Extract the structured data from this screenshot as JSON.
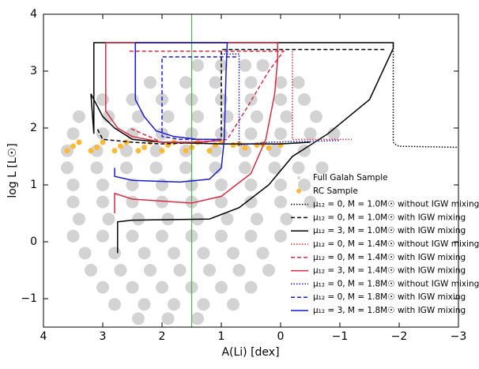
{
  "chart_data": {
    "type": "line",
    "xlabel": "A(Li) [dex]",
    "ylabel": "log L [L☉]",
    "xlim": [
      4,
      -3
    ],
    "ylim": [
      -1.5,
      4
    ],
    "xticks": [
      4,
      3,
      2,
      1,
      0,
      {
        "value": -1,
        "label": "−1"
      },
      {
        "value": -2,
        "label": "−2"
      },
      {
        "value": -3,
        "label": "−3"
      }
    ],
    "yticks": [
      {
        "value": -1,
        "label": "−1"
      },
      0,
      1,
      2,
      3,
      4
    ],
    "vline": {
      "x": 1.5,
      "color": "#4caf50"
    },
    "scatter": [
      {
        "name": "Full Galah Sample",
        "color": "#d3d3d3",
        "x": [
          1.4,
          1.0,
          0.6,
          0.3,
          2.2,
          1.6,
          1.1,
          0.5,
          0.0,
          -0.3,
          3.0,
          2.5,
          2.0,
          1.5,
          1.0,
          0.5,
          0.0,
          -0.4,
          3.4,
          2.9,
          2.4,
          1.9,
          1.4,
          0.9,
          0.4,
          -0.1,
          -0.6,
          3.5,
          3.0,
          2.5,
          2.0,
          1.5,
          1.0,
          0.5,
          0.0,
          -0.5,
          -0.9,
          3.6,
          3.1,
          2.6,
          2.1,
          1.6,
          1.1,
          0.6,
          0.1,
          -0.4,
          3.6,
          3.1,
          2.6,
          2.1,
          1.6,
          1.1,
          0.6,
          0.1,
          -0.3,
          -0.7,
          3.5,
          3.0,
          2.5,
          2.0,
          1.5,
          1.0,
          0.5,
          0.0,
          -0.4,
          3.5,
          3.0,
          2.5,
          2.0,
          1.5,
          1.0,
          0.5,
          0.0,
          -0.5,
          3.4,
          2.9,
          2.4,
          1.9,
          1.4,
          0.9,
          0.4,
          -0.1,
          3.5,
          3.0,
          2.5,
          2.0,
          1.5,
          1.0,
          0.5,
          0.0,
          3.3,
          2.8,
          2.3,
          1.8,
          1.3,
          0.8,
          0.3,
          3.2,
          2.7,
          2.2,
          1.7,
          1.2,
          0.7,
          0.2,
          3.0,
          2.5,
          2.0,
          1.5,
          1.0,
          0.5,
          2.8,
          2.3,
          1.8,
          1.3,
          0.8,
          2.4,
          1.9,
          1.4
        ],
        "values": [
          3.1,
          3.1,
          3.1,
          3.1,
          2.8,
          2.8,
          2.8,
          2.8,
          2.8,
          2.8,
          2.5,
          2.5,
          2.5,
          2.5,
          2.5,
          2.5,
          2.5,
          2.5,
          2.2,
          2.2,
          2.2,
          2.2,
          2.2,
          2.2,
          2.2,
          2.2,
          2.2,
          1.9,
          1.9,
          1.9,
          1.9,
          1.9,
          1.9,
          1.9,
          1.9,
          1.9,
          1.9,
          1.6,
          1.6,
          1.6,
          1.6,
          1.6,
          1.6,
          1.6,
          1.6,
          1.6,
          1.3,
          1.3,
          1.3,
          1.3,
          1.3,
          1.3,
          1.3,
          1.3,
          1.3,
          1.3,
          1.0,
          1.0,
          1.0,
          1.0,
          1.0,
          1.0,
          1.0,
          1.0,
          1.0,
          0.7,
          0.7,
          0.7,
          0.7,
          0.7,
          0.7,
          0.7,
          0.7,
          0.7,
          0.4,
          0.4,
          0.4,
          0.4,
          0.4,
          0.4,
          0.4,
          0.4,
          0.1,
          0.1,
          0.1,
          0.1,
          0.1,
          0.1,
          0.1,
          0.1,
          -0.2,
          -0.2,
          -0.2,
          -0.2,
          -0.2,
          -0.2,
          -0.2,
          -0.5,
          -0.5,
          -0.5,
          -0.5,
          -0.5,
          -0.5,
          -0.5,
          -0.8,
          -0.8,
          -0.8,
          -0.8,
          -0.8,
          -0.8,
          -1.1,
          -1.1,
          -1.1,
          -1.1,
          -1.1,
          -1.35,
          -1.35,
          -1.35
        ]
      },
      {
        "name": "RC Sample",
        "color": "#ffb833",
        "x": [
          3.6,
          3.4,
          3.2,
          3.0,
          2.8,
          2.6,
          2.4,
          2.2,
          2.0,
          1.8,
          1.6,
          1.4,
          1.2,
          1.0,
          0.8,
          0.6,
          0.4,
          0.2,
          0.0,
          3.5,
          3.1,
          2.7,
          2.3,
          1.9,
          1.5,
          1.1,
          0.7,
          0.3
        ],
        "values": [
          1.6,
          1.75,
          1.6,
          1.75,
          1.6,
          1.75,
          1.6,
          1.75,
          1.6,
          1.75,
          1.6,
          1.75,
          1.6,
          1.75,
          1.7,
          1.65,
          1.7,
          1.65,
          1.7,
          1.68,
          1.66,
          1.68,
          1.66,
          1.7,
          1.66,
          1.7,
          1.72,
          1.72
        ]
      }
    ],
    "series": [
      {
        "name": "μ₁₂ = 0, M = 1.0M☉ without IGW mixing",
        "color": "#000000",
        "dash": "dotted",
        "x": [
          -1.9,
          -1.9,
          -1.95,
          -2.0,
          -3.0
        ],
        "values": [
          3.5,
          1.75,
          1.7,
          1.68,
          1.66
        ]
      },
      {
        "name": "μ₁₂ = 0, M = 1.0M☉ with IGW mixing",
        "color": "#000000",
        "dash": "dashed",
        "x": [
          -1.75,
          1.0,
          1.0,
          1.3,
          2.0,
          2.5,
          3.0,
          3.1
        ],
        "values": [
          3.38,
          3.38,
          1.8,
          1.75,
          1.72,
          1.75,
          1.8,
          2.0
        ]
      },
      {
        "name": "μ₁₂ = 3, M = 1.0M☉ with IGW mixing",
        "color": "#000000",
        "dash": "solid",
        "x": [
          2.75,
          2.75,
          2.5,
          1.2,
          0.7,
          0.2,
          -0.2,
          -0.8,
          -1.5,
          -1.9,
          -1.9,
          3.15,
          3.15,
          3.2,
          3.0,
          2.8,
          2.5,
          2.0,
          1.0,
          0.0,
          -0.5
        ],
        "values": [
          -0.2,
          0.35,
          0.38,
          0.4,
          0.6,
          1.0,
          1.5,
          1.9,
          2.5,
          3.4,
          3.5,
          3.5,
          1.9,
          2.6,
          2.2,
          2.0,
          1.8,
          1.75,
          1.72,
          1.72,
          1.75
        ]
      },
      {
        "name": "μ₁₂ = 0, M = 1.4M☉ without IGW mixing",
        "color": "#d62d45",
        "dash": "dotted",
        "x": [
          -0.2,
          -0.2,
          -0.5,
          -1.2
        ],
        "values": [
          3.35,
          1.8,
          1.8,
          1.8
        ]
      },
      {
        "name": "μ₁₂ = 0, M = 1.4M☉ with IGW mixing",
        "color": "#d62d45",
        "dash": "dashed",
        "x": [
          2.55,
          -0.05,
          0.2,
          0.6,
          0.9,
          1.3,
          2.0,
          2.55
        ],
        "values": [
          3.35,
          3.35,
          3.0,
          2.3,
          1.8,
          1.75,
          1.75,
          2.0
        ]
      },
      {
        "name": "μ₁₂ = 3, M = 1.4M☉ with IGW mixing",
        "color": "#d62d45",
        "dash": "solid",
        "x": [
          2.8,
          2.8,
          2.5,
          1.5,
          1.0,
          0.5,
          0.25,
          0.1,
          0.05,
          0.05,
          2.95,
          2.95,
          2.75,
          2.5,
          2.0,
          1.5,
          1.0
        ],
        "values": [
          0.5,
          0.85,
          0.75,
          0.68,
          0.8,
          1.2,
          1.8,
          2.6,
          3.2,
          3.5,
          3.5,
          2.3,
          2.0,
          1.85,
          1.75,
          1.75,
          1.78
        ]
      },
      {
        "name": "μ₁₂ = 0, M = 1.8M☉ without IGW mixing",
        "color": "#1a1acc",
        "dash": "dotted",
        "x": [
          1.0,
          0.7,
          0.7,
          0.2,
          -1.0
        ],
        "values": [
          3.3,
          3.3,
          1.7,
          1.75,
          1.78
        ]
      },
      {
        "name": "μ₁₂ = 0, M = 1.8M☉ with IGW mixing",
        "color": "#1a1acc",
        "dash": "dashed",
        "x": [
          0.75,
          2.0,
          2.0,
          1.7,
          1.2
        ],
        "values": [
          3.25,
          3.25,
          1.85,
          1.8,
          1.8
        ]
      },
      {
        "name": "μ₁₂ = 3, M = 1.8M☉ with IGW mixing",
        "color": "#1a1acc",
        "dash": "solid",
        "x": [
          2.8,
          2.8,
          2.5,
          1.7,
          1.2,
          1.0,
          0.95,
          0.92,
          0.9,
          2.45,
          2.45,
          2.3,
          2.1,
          1.8,
          1.4,
          1.0
        ],
        "values": [
          1.3,
          1.15,
          1.08,
          1.05,
          1.1,
          1.3,
          1.8,
          3.0,
          3.5,
          3.5,
          2.5,
          2.2,
          1.95,
          1.85,
          1.8,
          1.8
        ]
      }
    ]
  }
}
